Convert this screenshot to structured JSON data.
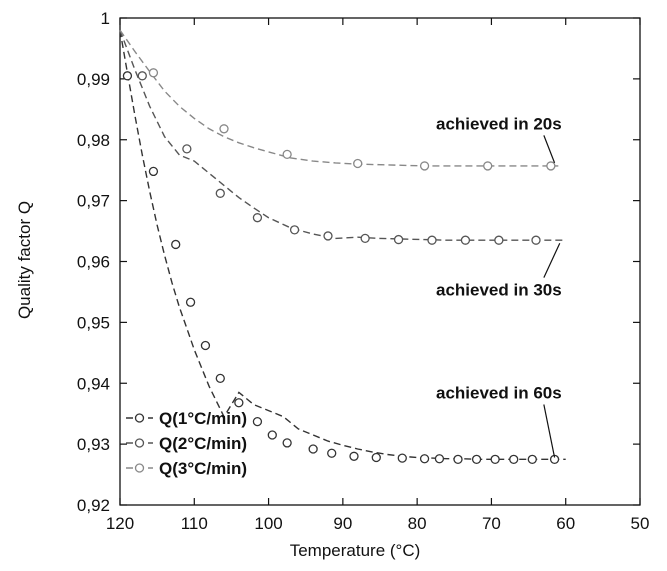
{
  "chart_data": {
    "type": "line",
    "title": "",
    "xlabel": "Temperature (°C)",
    "ylabel": "Quality factor Q",
    "xlim": [
      120,
      50
    ],
    "ylim": [
      0.92,
      1.0
    ],
    "x_reversed": true,
    "grid": false,
    "legend_position": "bottom-left",
    "x_ticks": [
      120,
      110,
      100,
      90,
      80,
      70,
      60,
      50
    ],
    "x_tick_labels": [
      "120",
      "110",
      "100",
      "90",
      "80",
      "70",
      "60",
      "50"
    ],
    "y_ticks": [
      0.92,
      0.93,
      0.94,
      0.95,
      0.96,
      0.97,
      0.98,
      0.99,
      1.0
    ],
    "y_tick_labels": [
      "0,92",
      "0,93",
      "0,94",
      "0,95",
      "0,96",
      "0,97",
      "0,98",
      "0,99",
      "1"
    ],
    "series": [
      {
        "name": "Q(1°C/min)",
        "color": "#333333",
        "curve_x": [
          120,
          119,
          118,
          117,
          116,
          115,
          114,
          113,
          112,
          111,
          110,
          108,
          106,
          104,
          102,
          100,
          98,
          96,
          94,
          92,
          90,
          88,
          86,
          84,
          82,
          80,
          78,
          76,
          74,
          72,
          70,
          68,
          66,
          64,
          62,
          60
        ],
        "curve_y": [
          0.998,
          0.991,
          0.984,
          0.9775,
          0.9715,
          0.966,
          0.961,
          0.9565,
          0.9525,
          0.949,
          0.9455,
          0.9395,
          0.9345,
          0.9385,
          0.9365,
          0.9355,
          0.9345,
          0.9325,
          0.9315,
          0.9305,
          0.9298,
          0.9292,
          0.9287,
          0.9283,
          0.928,
          0.9278,
          0.9277,
          0.9276,
          0.9276,
          0.9275,
          0.9275,
          0.9275,
          0.9275,
          0.9275,
          0.9275,
          0.9275
        ],
        "marker_x": [
          119,
          115.5,
          112.5,
          110.5,
          108.5,
          106.5,
          104,
          101.5,
          99.5,
          97.5,
          94,
          91.5,
          88.5,
          85.5,
          82,
          79,
          77,
          74.5,
          72,
          69.5,
          67,
          64.5,
          61.5
        ],
        "marker_y": [
          0.9905,
          0.9748,
          0.9628,
          0.9533,
          0.9462,
          0.9408,
          0.9368,
          0.9337,
          0.9315,
          0.9302,
          0.9292,
          0.9285,
          0.928,
          0.9278,
          0.9277,
          0.9276,
          0.9276,
          0.9275,
          0.9275,
          0.9275,
          0.9275,
          0.9275,
          0.9275
        ]
      },
      {
        "name": "Q(2°C/min)",
        "color": "#555555",
        "curve_x": [
          120,
          118,
          116,
          114,
          112,
          110,
          108,
          106,
          104,
          102,
          100,
          97,
          94,
          91,
          88,
          85,
          82,
          79,
          76,
          73,
          70,
          67,
          64,
          60
        ],
        "curve_y": [
          0.998,
          0.9915,
          0.9855,
          0.9805,
          0.9775,
          0.9765,
          0.9745,
          0.9725,
          0.9705,
          0.9688,
          0.9672,
          0.9655,
          0.9645,
          0.9638,
          0.964,
          0.9638,
          0.9637,
          0.9636,
          0.9635,
          0.9635,
          0.9635,
          0.9635,
          0.9635,
          0.9635
        ],
        "marker_x": [
          117,
          111,
          106.5,
          101.5,
          96.5,
          92,
          87,
          82.5,
          78,
          73.5,
          69,
          64
        ],
        "marker_y": [
          0.9905,
          0.9785,
          0.9712,
          0.9672,
          0.9652,
          0.9642,
          0.9638,
          0.9636,
          0.9635,
          0.9635,
          0.9635,
          0.9635
        ]
      },
      {
        "name": "Q(3°C/min)",
        "color": "#888888",
        "curve_x": [
          120,
          118,
          116,
          114,
          112,
          110,
          108,
          106,
          104,
          102,
          100,
          97,
          94,
          91,
          88,
          85,
          82,
          79,
          76,
          73,
          70,
          67,
          64,
          61
        ],
        "curve_y": [
          0.998,
          0.9945,
          0.9912,
          0.988,
          0.9855,
          0.9835,
          0.9818,
          0.9805,
          0.9795,
          0.9787,
          0.978,
          0.977,
          0.9765,
          0.9762,
          0.976,
          0.9759,
          0.9758,
          0.9757,
          0.9757,
          0.9757,
          0.9757,
          0.9757,
          0.9757,
          0.9757
        ],
        "marker_x": [
          115.5,
          106,
          97.5,
          88,
          79,
          70.5,
          62
        ],
        "marker_y": [
          0.991,
          0.9818,
          0.9776,
          0.9761,
          0.9757,
          0.9757,
          0.9757
        ]
      }
    ],
    "annotations": [
      {
        "text": "achieved in 20s",
        "x": 69,
        "y": 0.9817,
        "point_x": 61.5,
        "point_y": 0.9762
      },
      {
        "text": "achieved in 30s",
        "x": 69,
        "y": 0.9544,
        "point_x": 60.8,
        "point_y": 0.963
      },
      {
        "text": "achieved in 60s",
        "x": 69,
        "y": 0.9375,
        "point_x": 61.5,
        "point_y": 0.9278
      }
    ]
  }
}
